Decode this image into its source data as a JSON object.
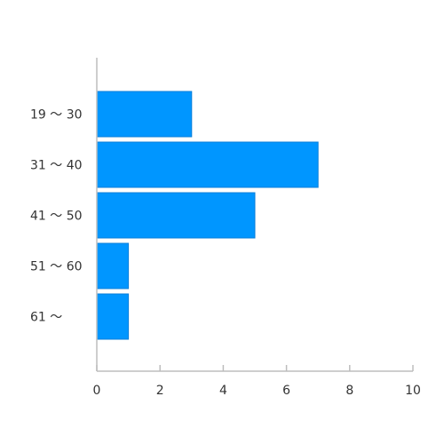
{
  "chart_data": {
    "type": "bar",
    "orientation": "horizontal",
    "categories": [
      "19 ～ 30",
      "31 ～ 40",
      "41 ～ 50",
      "51 ～ 60",
      "61 ～"
    ],
    "values": [
      3,
      7,
      5,
      1,
      1
    ],
    "title": "",
    "xlabel": "",
    "ylabel": "",
    "xlim": [
      0,
      10
    ],
    "xticks": [
      "0",
      "2",
      "4",
      "6",
      "8",
      "10"
    ],
    "grid": false,
    "legend": "none",
    "bar_color": "#0096FF",
    "axis_color": "#BDBDBD"
  }
}
